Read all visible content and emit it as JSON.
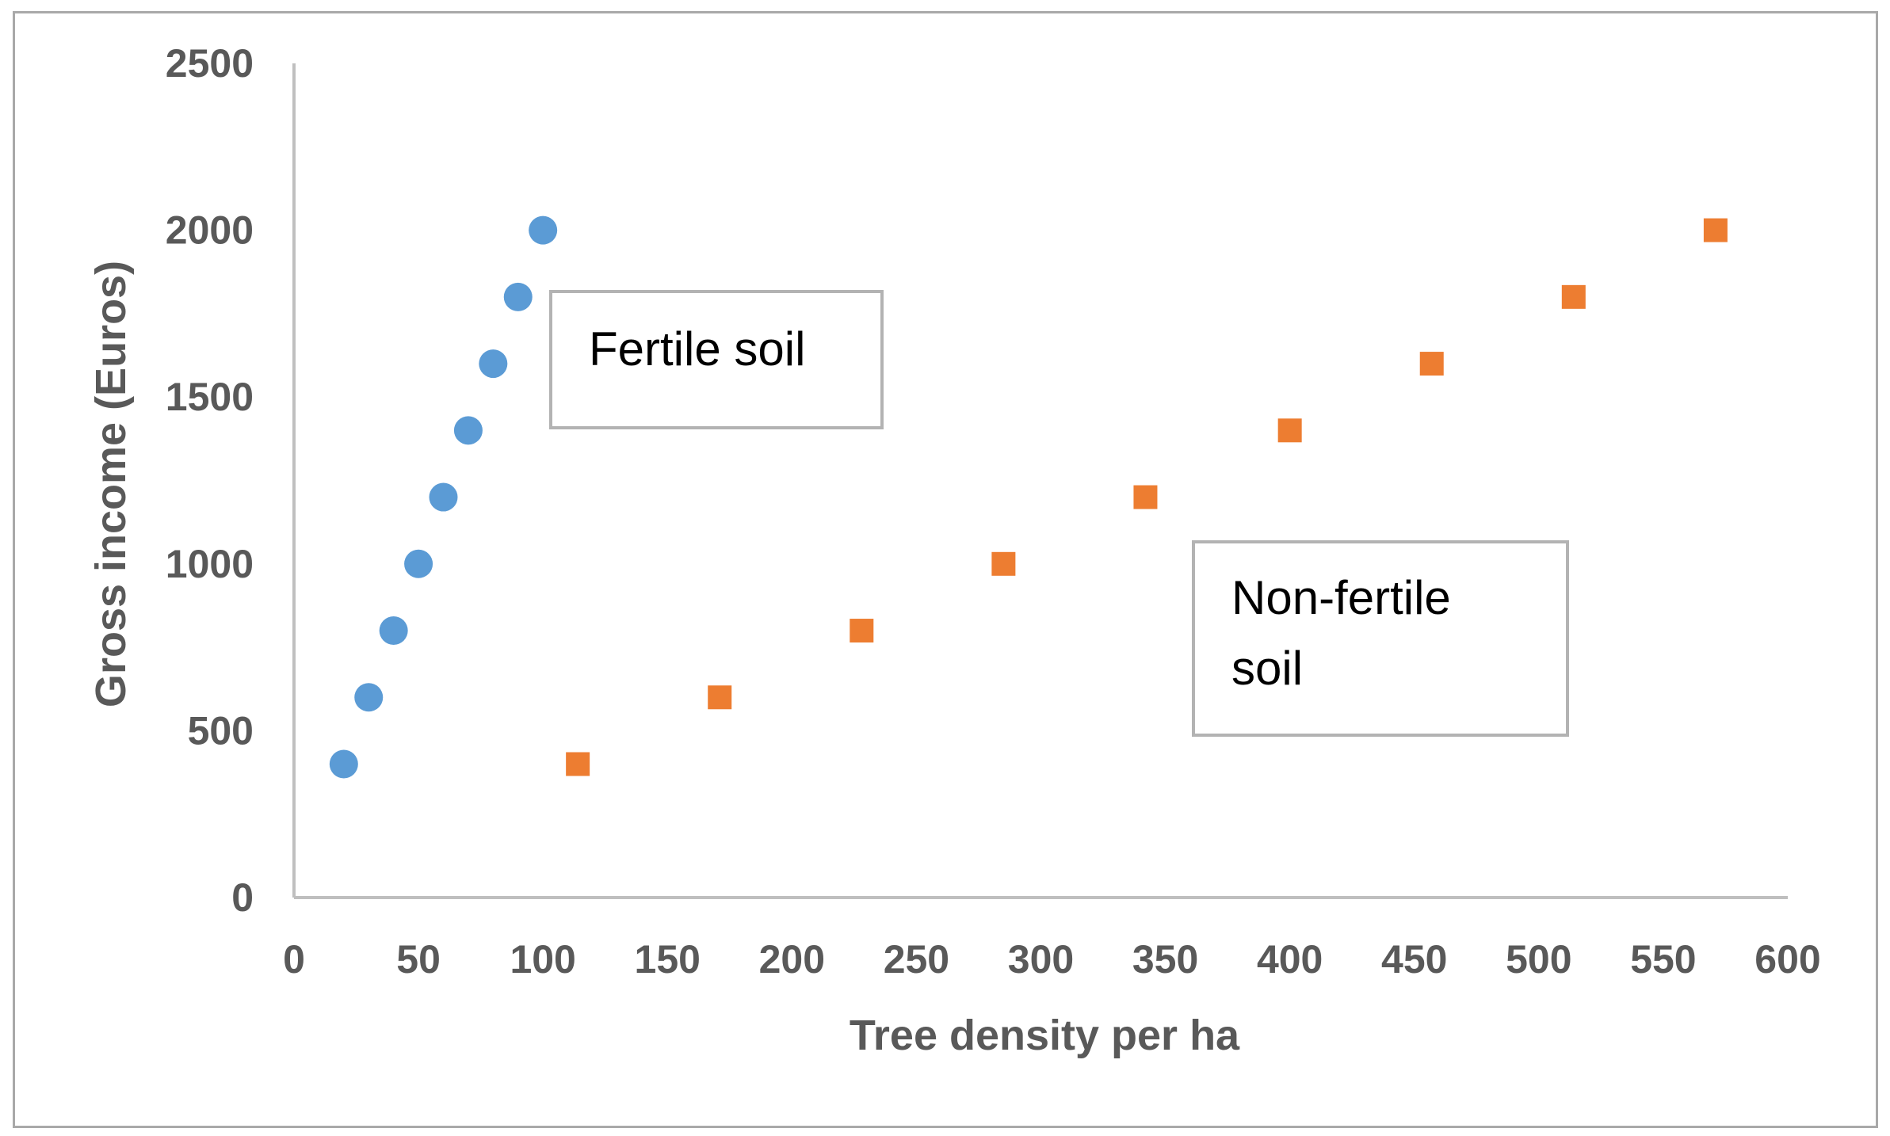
{
  "chart_data": {
    "type": "scatter",
    "title": "",
    "xlabel": "Tree density per ha",
    "ylabel": "Gross income (Euros)",
    "xlim": [
      0,
      600
    ],
    "ylim": [
      0,
      2500
    ],
    "xticks": [
      0,
      50,
      100,
      150,
      200,
      250,
      300,
      350,
      400,
      450,
      500,
      550,
      600
    ],
    "yticks": [
      0,
      500,
      1000,
      1500,
      2000,
      2500
    ],
    "grid": false,
    "legend": "none",
    "series": [
      {
        "marker": "circle",
        "color": "#5b9bd5",
        "points": [
          {
            "x": 20,
            "y": 400
          },
          {
            "x": 30,
            "y": 600
          },
          {
            "x": 40,
            "y": 800
          },
          {
            "x": 50,
            "y": 1000
          },
          {
            "x": 60,
            "y": 1200
          },
          {
            "x": 70,
            "y": 1400
          },
          {
            "x": 80,
            "y": 1600
          },
          {
            "x": 90,
            "y": 1800
          },
          {
            "x": 100,
            "y": 2000
          }
        ]
      },
      {
        "marker": "square",
        "color": "#ed7d31",
        "points": [
          {
            "x": 114,
            "y": 400
          },
          {
            "x": 171,
            "y": 600
          },
          {
            "x": 228,
            "y": 800
          },
          {
            "x": 285,
            "y": 1000
          },
          {
            "x": 342,
            "y": 1200
          },
          {
            "x": 400,
            "y": 1400
          },
          {
            "x": 457,
            "y": 1600
          },
          {
            "x": 514,
            "y": 1800
          },
          {
            "x": 571,
            "y": 2000
          }
        ]
      }
    ],
    "annotations": [
      {
        "lines": [
          "Fertile soil"
        ]
      },
      {
        "lines": [
          "Non-fertile",
          "soil"
        ]
      }
    ],
    "colors": {
      "axis": "#bfbfbf",
      "text": "#595959"
    }
  }
}
